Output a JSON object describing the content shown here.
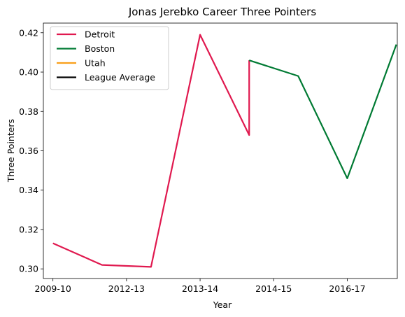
{
  "chart_data": {
    "type": "line",
    "title": "Jonas Jerebko Career Three Pointers",
    "xlabel": "Year",
    "ylabel": "Three Pointers",
    "x_tick_labels": [
      "2009-10",
      "2012-13",
      "2013-14",
      "2014-15",
      "2016-17"
    ],
    "x_tick_positions": [
      0,
      1,
      2,
      3,
      4
    ],
    "xlim": [
      -0.13,
      4.68
    ],
    "ylim": [
      0.2951,
      0.4249
    ],
    "y_ticks": [
      0.3,
      0.32,
      0.34,
      0.36,
      0.38,
      0.4,
      0.42
    ],
    "grid": false,
    "legend_placement": "top-left",
    "series": [
      {
        "name": "Detroit",
        "color": "#e0194f",
        "points": [
          [
            0,
            0.313
          ],
          [
            0.667,
            0.302
          ],
          [
            1.333,
            0.301
          ],
          [
            2.0,
            0.419
          ],
          [
            2.667,
            0.368
          ],
          [
            2.667,
            0.406
          ]
        ]
      },
      {
        "name": "Boston",
        "color": "#007a33",
        "points": [
          [
            2.667,
            0.406
          ],
          [
            3.333,
            0.398
          ],
          [
            4.0,
            0.346
          ],
          [
            4.667,
            0.414
          ]
        ]
      },
      {
        "name": "Utah",
        "color": "#f9a01b",
        "points": []
      },
      {
        "name": "League Average",
        "color": "#000000",
        "points": []
      }
    ]
  }
}
